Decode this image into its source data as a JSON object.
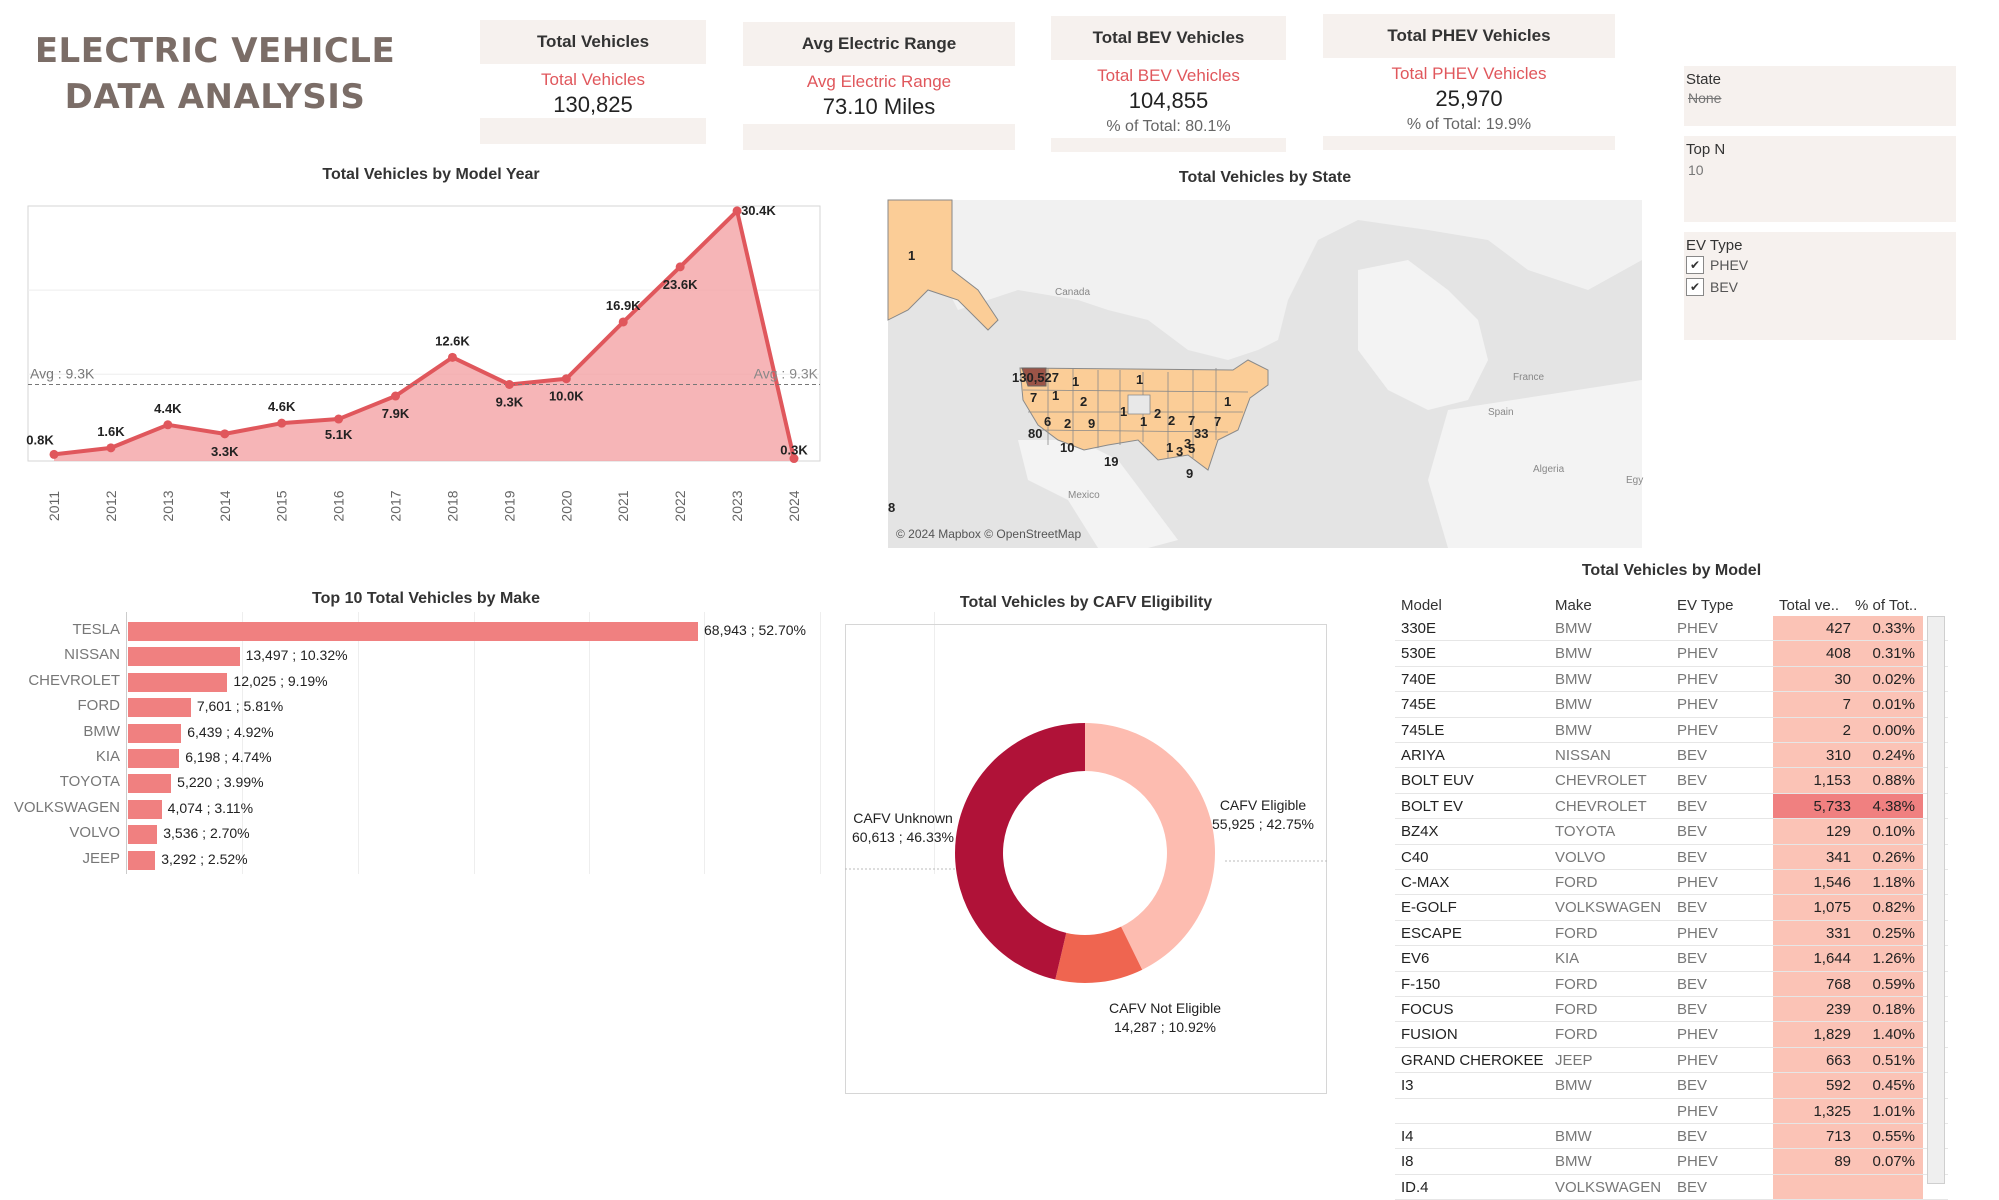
{
  "title": "ELECTRIC VEHICLE DATA ANALYSIS",
  "kpis": {
    "total_vehicles": {
      "header": "Total Vehicles",
      "label": "Total Vehicles",
      "value": "130,825"
    },
    "avg_range": {
      "header": "Avg Electric Range",
      "label": "Avg Electric Range",
      "value": "73.10 Miles"
    },
    "total_bev": {
      "header": "Total BEV Vehicles",
      "label": "Total BEV Vehicles",
      "value": "104,855",
      "pct": "% of Total: 80.1%"
    },
    "total_phev": {
      "header": "Total PHEV Vehicles",
      "label": "Total PHEV Vehicles",
      "value": "25,970",
      "pct": "% of Total: 19.9%"
    }
  },
  "filters": {
    "state": {
      "label": "State",
      "value": "None"
    },
    "top_n": {
      "label": "Top N",
      "value": "10"
    },
    "ev_type": {
      "label": "EV Type",
      "options": [
        "PHEV",
        "BEV"
      ]
    }
  },
  "colors": {
    "accent": "#e0575c",
    "area": "#f4a3a5",
    "bar": "#f08080",
    "heat_high": "#f08080",
    "heat_low": "#fbc3b6",
    "donut_unknown": "#b01238",
    "donut_eligible": "#fdbcb0",
    "donut_not_eligible": "#ef6550",
    "map_state": "#fbcd97",
    "map_wa": "#9b5447"
  },
  "chart_data": [
    {
      "type": "area",
      "title": "Total Vehicles by Model Year",
      "x": [
        "2011",
        "2012",
        "2013",
        "2014",
        "2015",
        "2016",
        "2017",
        "2018",
        "2019",
        "2020",
        "2021",
        "2022",
        "2023",
        "2024"
      ],
      "values": [
        0.8,
        1.6,
        4.4,
        3.3,
        4.6,
        5.1,
        7.9,
        12.6,
        9.3,
        10.0,
        16.9,
        23.6,
        30.4,
        0.3
      ],
      "labels": [
        "0.8K",
        "1.6K",
        "4.4K",
        "3.3K",
        "4.6K",
        "5.1K",
        "7.9K",
        "12.6K",
        "9.3K",
        "10.0K",
        "16.9K",
        "23.6K",
        "30.4K",
        "0.3K"
      ],
      "ylim": [
        0,
        31
      ],
      "reference_line": {
        "value": 9.3,
        "label": "Avg : 9.3K"
      }
    },
    {
      "type": "bar",
      "title": "Top 10 Total Vehicles by Make",
      "categories": [
        "TESLA",
        "NISSAN",
        "CHEVROLET",
        "FORD",
        "BMW",
        "KIA",
        "TOYOTA",
        "VOLKSWAGEN",
        "VOLVO",
        "JEEP"
      ],
      "values": [
        68943,
        13497,
        12025,
        7601,
        6439,
        6198,
        5220,
        4074,
        3536,
        3292
      ],
      "labels": [
        "68,943 ; 52.70%",
        "13,497 ; 10.32%",
        "12,025 ; 9.19%",
        "7,601 ; 5.81%",
        "6,439 ; 4.92%",
        "6,198 ; 4.74%",
        "5,220 ; 3.99%",
        "4,074 ; 3.11%",
        "3,536 ; 2.70%",
        "3,292 ; 2.52%"
      ]
    },
    {
      "type": "pie",
      "title": "Total Vehicles by CAFV Eligibility",
      "categories": [
        "CAFV Eligible",
        "CAFV Not Eligible",
        "CAFV Unknown"
      ],
      "values": [
        55925,
        14287,
        60613
      ],
      "labels": [
        "55,925 ; 42.75%",
        "14,287 ; 10.92%",
        "60,613 ; 46.33%"
      ]
    }
  ],
  "map": {
    "title": "Total Vehicles by State",
    "attribution": "© 2024 Mapbox © OpenStreetMap",
    "place_labels": [
      "Canada",
      "Mexico",
      "France",
      "Spain",
      "Algeria",
      "Egy"
    ],
    "values": [
      "130,527",
      "1",
      "1",
      "7",
      "1",
      "2",
      "6",
      "2",
      "9",
      "1",
      "80",
      "10",
      "19",
      "1",
      "2",
      "2",
      "1",
      "7",
      "7",
      "33",
      "3",
      "1",
      "3",
      "5",
      "9",
      "1",
      "8"
    ]
  },
  "table": {
    "title": "Total Vehicles by Model",
    "columns": [
      "Model",
      "Make",
      "EV Type",
      "Total ve..",
      "% of Tot.."
    ],
    "rows": [
      {
        "model": "330E",
        "make": "BMW",
        "ev": "PHEV",
        "total": "427",
        "pct": "0.33%"
      },
      {
        "model": "530E",
        "make": "BMW",
        "ev": "PHEV",
        "total": "408",
        "pct": "0.31%"
      },
      {
        "model": "740E",
        "make": "BMW",
        "ev": "PHEV",
        "total": "30",
        "pct": "0.02%"
      },
      {
        "model": "745E",
        "make": "BMW",
        "ev": "PHEV",
        "total": "7",
        "pct": "0.01%"
      },
      {
        "model": "745LE",
        "make": "BMW",
        "ev": "PHEV",
        "total": "2",
        "pct": "0.00%"
      },
      {
        "model": "ARIYA",
        "make": "NISSAN",
        "ev": "BEV",
        "total": "310",
        "pct": "0.24%"
      },
      {
        "model": "BOLT EUV",
        "make": "CHEVROLET",
        "ev": "BEV",
        "total": "1,153",
        "pct": "0.88%"
      },
      {
        "model": "BOLT EV",
        "make": "CHEVROLET",
        "ev": "BEV",
        "total": "5,733",
        "pct": "4.38%"
      },
      {
        "model": "BZ4X",
        "make": "TOYOTA",
        "ev": "BEV",
        "total": "129",
        "pct": "0.10%"
      },
      {
        "model": "C40",
        "make": "VOLVO",
        "ev": "BEV",
        "total": "341",
        "pct": "0.26%"
      },
      {
        "model": "C-MAX",
        "make": "FORD",
        "ev": "PHEV",
        "total": "1,546",
        "pct": "1.18%"
      },
      {
        "model": "E-GOLF",
        "make": "VOLKSWAGEN",
        "ev": "BEV",
        "total": "1,075",
        "pct": "0.82%"
      },
      {
        "model": "ESCAPE",
        "make": "FORD",
        "ev": "PHEV",
        "total": "331",
        "pct": "0.25%"
      },
      {
        "model": "EV6",
        "make": "KIA",
        "ev": "BEV",
        "total": "1,644",
        "pct": "1.26%"
      },
      {
        "model": "F-150",
        "make": "FORD",
        "ev": "BEV",
        "total": "768",
        "pct": "0.59%"
      },
      {
        "model": "FOCUS",
        "make": "FORD",
        "ev": "BEV",
        "total": "239",
        "pct": "0.18%"
      },
      {
        "model": "FUSION",
        "make": "FORD",
        "ev": "PHEV",
        "total": "1,829",
        "pct": "1.40%"
      },
      {
        "model": "GRAND CHEROKEE",
        "make": "JEEP",
        "ev": "PHEV",
        "total": "663",
        "pct": "0.51%"
      },
      {
        "model": "I3",
        "make": "BMW",
        "ev": "BEV",
        "total": "592",
        "pct": "0.45%"
      },
      {
        "model": "",
        "make": "",
        "ev": "PHEV",
        "total": "1,325",
        "pct": "1.01%"
      },
      {
        "model": "I4",
        "make": "BMW",
        "ev": "BEV",
        "total": "713",
        "pct": "0.55%"
      },
      {
        "model": "I8",
        "make": "BMW",
        "ev": "PHEV",
        "total": "89",
        "pct": "0.07%"
      },
      {
        "model": "ID.4",
        "make": "VOLKSWAGEN",
        "ev": "BEV",
        "total": "",
        "pct": ""
      }
    ]
  }
}
